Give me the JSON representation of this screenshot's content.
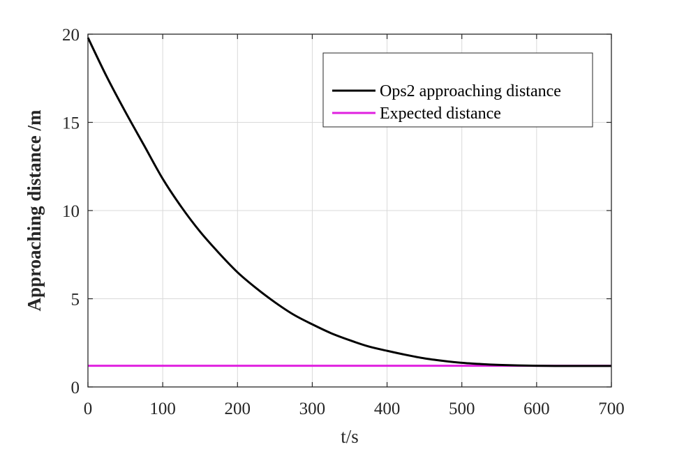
{
  "chart_data": {
    "type": "line",
    "title": "",
    "xlabel": "t/s",
    "ylabel": "Approaching distance /m",
    "xlim": [
      0,
      700
    ],
    "ylim": [
      0,
      20
    ],
    "xticks": [
      0,
      100,
      200,
      300,
      400,
      500,
      600,
      700
    ],
    "yticks": [
      0,
      5,
      10,
      15,
      20
    ],
    "grid": true,
    "legend_position": "top-right",
    "series": [
      {
        "name": "Ops2 approaching distance",
        "color": "#000000",
        "x": [
          0,
          25,
          50,
          75,
          100,
          125,
          150,
          175,
          200,
          225,
          250,
          275,
          300,
          325,
          350,
          375,
          400,
          425,
          450,
          475,
          500,
          525,
          550,
          575,
          600,
          625,
          650,
          675,
          700
        ],
        "y": [
          19.8,
          17.6,
          15.6,
          13.7,
          11.8,
          10.2,
          8.8,
          7.6,
          6.5,
          5.6,
          4.8,
          4.1,
          3.55,
          3.05,
          2.65,
          2.3,
          2.05,
          1.82,
          1.62,
          1.48,
          1.37,
          1.3,
          1.25,
          1.22,
          1.2,
          1.19,
          1.19,
          1.19,
          1.19
        ]
      },
      {
        "name": "Expected distance",
        "color": "#e020e0",
        "x": [
          0,
          700
        ],
        "y": [
          1.2,
          1.2
        ]
      }
    ]
  }
}
